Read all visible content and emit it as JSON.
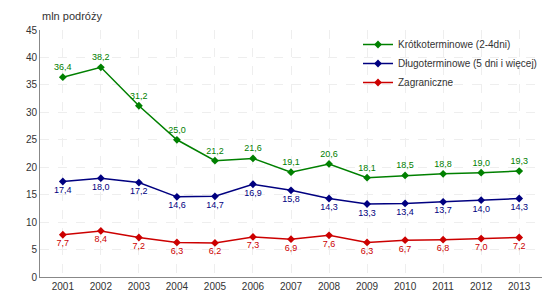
{
  "chart_data": {
    "type": "line",
    "ylabel": "mln podróży",
    "x": [
      2001,
      2002,
      2003,
      2004,
      2005,
      2006,
      2007,
      2008,
      2009,
      2010,
      2011,
      2012,
      2013
    ],
    "series": [
      {
        "name": "Krótkoterminowe (2-4dni)",
        "color": "#008000",
        "marker": "diamond",
        "values": [
          36.4,
          38.2,
          31.2,
          25.0,
          21.2,
          21.6,
          19.1,
          20.6,
          18.1,
          18.5,
          18.8,
          19.0,
          19.3
        ],
        "value_labels": [
          "36,4",
          "38,2",
          "31,2",
          "25,0",
          "21,2",
          "21,6",
          "19,1",
          "20,6",
          "18,1",
          "18,5",
          "18,8",
          "19,0",
          "19,3"
        ]
      },
      {
        "name": "Długoterminowe (5 dni i więcej)",
        "color": "#000080",
        "marker": "diamond",
        "values": [
          17.4,
          18.0,
          17.2,
          14.6,
          14.7,
          16.9,
          15.8,
          14.3,
          13.3,
          13.4,
          13.7,
          14.0,
          14.3
        ],
        "value_labels": [
          "17,4",
          "18,0",
          "17,2",
          "14,6",
          "14,7",
          "16,9",
          "15,8",
          "14,3",
          "13,3",
          "13,4",
          "13,7",
          "14,0",
          "14,3"
        ]
      },
      {
        "name": "Zagraniczne",
        "color": "#CC0000",
        "marker": "diamond",
        "values": [
          7.7,
          8.4,
          7.2,
          6.3,
          6.2,
          7.3,
          6.9,
          7.6,
          6.3,
          6.7,
          6.8,
          7.0,
          7.2
        ],
        "value_labels": [
          "7,7",
          "8,4",
          "7,2",
          "6,3",
          "6,2",
          "7,3",
          "6,9",
          "7,6",
          "6,3",
          "6,7",
          "6,8",
          "7,0",
          "7,2"
        ]
      }
    ],
    "xlim": [
      2000.4,
      2013.6
    ],
    "xticks": [
      2001,
      2002,
      2003,
      2004,
      2005,
      2006,
      2007,
      2008,
      2009,
      2010,
      2011,
      2012,
      2013
    ],
    "ylim": [
      0,
      45
    ],
    "yticks": [
      0,
      5,
      10,
      15,
      20,
      25,
      30,
      35,
      40,
      45
    ],
    "grid": true,
    "legend": "upper right",
    "data_labels": true
  }
}
